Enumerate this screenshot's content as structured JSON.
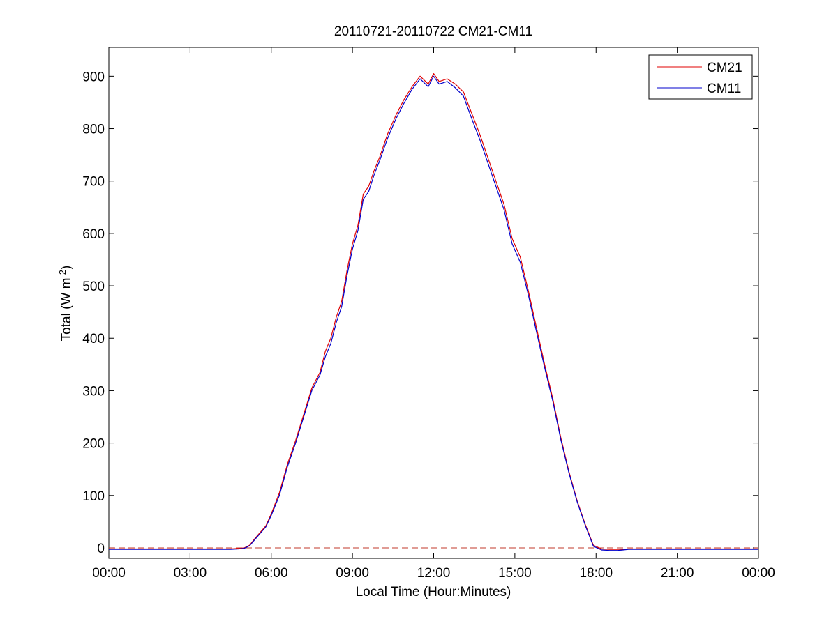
{
  "chart_data": {
    "type": "line",
    "title": "20110721-20110722 CM21-CM11",
    "xlabel": "Local Time (Hour:Minutes)",
    "ylabel_main": "Total (W m",
    "ylabel_sup": "-2",
    "ylabel_close": ")",
    "xlim_hours": [
      0,
      24
    ],
    "ylim": [
      -20,
      955
    ],
    "x_ticks": [
      {
        "hour": 0,
        "label": "00:00"
      },
      {
        "hour": 3,
        "label": "03:00"
      },
      {
        "hour": 6,
        "label": "06:00"
      },
      {
        "hour": 9,
        "label": "09:00"
      },
      {
        "hour": 12,
        "label": "12:00"
      },
      {
        "hour": 15,
        "label": "15:00"
      },
      {
        "hour": 18,
        "label": "18:00"
      },
      {
        "hour": 21,
        "label": "21:00"
      },
      {
        "hour": 24,
        "label": "00:00"
      }
    ],
    "y_ticks": [
      0,
      100,
      200,
      300,
      400,
      500,
      600,
      700,
      800,
      900
    ],
    "grid": false,
    "legend_position": "top-right",
    "reference_line": {
      "y": 0,
      "style": "dashed",
      "color": "#c0392b"
    },
    "series": [
      {
        "name": "CM21",
        "color": "#e00000",
        "x_hours": [
          0,
          3,
          4.5,
          4.8,
          5.0,
          5.2,
          5.4,
          5.6,
          5.8,
          6.0,
          6.3,
          6.6,
          6.9,
          7.2,
          7.5,
          7.8,
          8.0,
          8.2,
          8.4,
          8.6,
          8.8,
          9.0,
          9.2,
          9.4,
          9.6,
          9.8,
          10.0,
          10.3,
          10.6,
          10.9,
          11.2,
          11.5,
          11.8,
          12.0,
          12.2,
          12.5,
          12.8,
          13.1,
          13.4,
          13.7,
          14.0,
          14.3,
          14.6,
          14.9,
          15.2,
          15.5,
          15.8,
          16.1,
          16.4,
          16.7,
          17.0,
          17.3,
          17.6,
          17.9,
          18.2,
          18.5,
          18.8,
          19.0,
          19.2,
          19.5,
          20.0,
          21.0,
          22.0,
          23.0,
          24.0
        ],
        "y": [
          -2,
          -2,
          -2,
          -1,
          0,
          5,
          18,
          30,
          42,
          65,
          105,
          160,
          205,
          255,
          305,
          335,
          375,
          400,
          440,
          470,
          530,
          580,
          615,
          675,
          690,
          720,
          745,
          790,
          825,
          855,
          880,
          900,
          885,
          905,
          890,
          895,
          885,
          870,
          830,
          790,
          745,
          700,
          655,
          590,
          555,
          490,
          420,
          350,
          285,
          210,
          145,
          90,
          45,
          5,
          -2,
          -3,
          -3,
          -3,
          -2,
          -2,
          -2,
          -2,
          -2,
          -2,
          -2
        ]
      },
      {
        "name": "CM11",
        "color": "#0000cc",
        "x_hours": [
          0,
          3,
          4.5,
          4.8,
          5.0,
          5.2,
          5.4,
          5.6,
          5.8,
          6.0,
          6.3,
          6.6,
          6.9,
          7.2,
          7.5,
          7.8,
          8.0,
          8.2,
          8.4,
          8.6,
          8.8,
          9.0,
          9.2,
          9.4,
          9.6,
          9.8,
          10.0,
          10.3,
          10.6,
          10.9,
          11.2,
          11.5,
          11.8,
          12.0,
          12.2,
          12.5,
          12.8,
          13.1,
          13.4,
          13.7,
          14.0,
          14.3,
          14.6,
          14.9,
          15.2,
          15.5,
          15.8,
          16.1,
          16.4,
          16.7,
          17.0,
          17.3,
          17.6,
          17.9,
          18.2,
          18.5,
          18.8,
          19.0,
          19.2,
          19.5,
          20.0,
          21.0,
          22.0,
          23.0,
          24.0
        ],
        "y": [
          -3,
          -3,
          -3,
          -2,
          -1,
          4,
          16,
          28,
          40,
          62,
          100,
          155,
          200,
          250,
          300,
          330,
          365,
          390,
          430,
          460,
          520,
          570,
          605,
          665,
          680,
          712,
          738,
          782,
          818,
          848,
          875,
          895,
          880,
          900,
          885,
          890,
          878,
          862,
          820,
          780,
          735,
          690,
          645,
          580,
          545,
          482,
          412,
          344,
          280,
          206,
          142,
          88,
          43,
          3,
          -4,
          -5,
          -5,
          -4,
          -3,
          -3,
          -3,
          -3,
          -3,
          -3,
          -3
        ]
      }
    ]
  }
}
